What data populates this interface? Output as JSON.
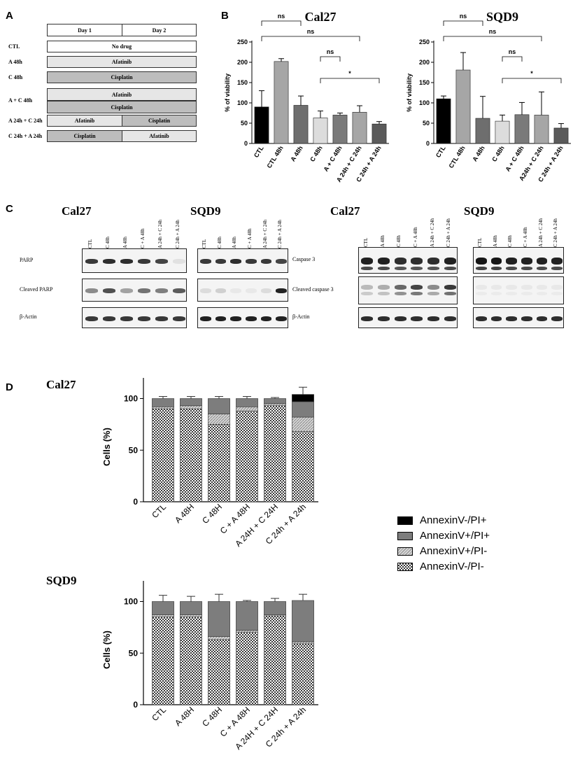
{
  "panels": {
    "a": "A",
    "b": "B",
    "c": "C",
    "d": "D"
  },
  "schedule": {
    "header": [
      "Day 1",
      "Day 2"
    ],
    "rows": [
      {
        "label": "CTL",
        "cells": [
          {
            "text": "No drug",
            "span": 2,
            "fill": "#ffffff"
          }
        ]
      },
      {
        "label": "A 48h",
        "cells": [
          {
            "text": "Afatinib",
            "span": 2,
            "fill": "#e6e6e6"
          }
        ]
      },
      {
        "label": "C 48h",
        "cells": [
          {
            "text": "Cisplatin",
            "span": 2,
            "fill": "#bdbdbd"
          }
        ]
      },
      {
        "label": "A + C 48h",
        "cells": [
          {
            "text": "Afatinib",
            "span": 2,
            "fill": "#e6e6e6"
          },
          {
            "text": "Cisplatin",
            "span": 2,
            "fill": "#bdbdbd"
          }
        ]
      },
      {
        "label": "A 24h + C 24h",
        "cells": [
          {
            "text": "Afatinib",
            "span": 1,
            "fill": "#e6e6e6"
          },
          {
            "text": "Cisplatin",
            "span": 1,
            "fill": "#bdbdbd"
          }
        ]
      },
      {
        "label": "C 24h + A 24h",
        "cells": [
          {
            "text": "Cisplatin",
            "span": 1,
            "fill": "#bdbdbd"
          },
          {
            "text": "Afatinib",
            "span": 1,
            "fill": "#e6e6e6"
          }
        ]
      }
    ]
  },
  "blots": {
    "left_titles": [
      "Cal27",
      "SQD9"
    ],
    "right_titles": [
      "Cal27",
      "SQD9"
    ],
    "left_lanes": [
      "CTL",
      "C 48h",
      "A 48h",
      "C + A 48h",
      "A 24h + C 24h",
      "C 24h + A 24h"
    ],
    "right_lanes": [
      "CTL",
      "A 48h",
      "C 48h",
      "C + A 48h",
      "A 24h + C 24h",
      "C 24h + A 24h"
    ],
    "left_rows": [
      "PARP",
      "Cleaved PARP",
      "β-Actin"
    ],
    "right_rows": [
      "Caspase 3",
      "Cleaved caspase 3",
      "β-Actin"
    ]
  },
  "legend": [
    {
      "label": "AnnexinV-/PI+",
      "fill": "solid-black"
    },
    {
      "label": "AnnexinV+/PI+",
      "fill": "solid-gray"
    },
    {
      "label": "AnnexinV+/PI-",
      "fill": "hatch"
    },
    {
      "label": "AnnexinV-/PI-",
      "fill": "checker"
    }
  ],
  "chart_data": [
    {
      "type": "bar",
      "title": "Cal27",
      "ylabel": "% of viability",
      "ylim": [
        0,
        250
      ],
      "yticks": [
        0,
        50,
        100,
        150,
        200,
        250
      ],
      "categories": [
        "CTL",
        "CTL 48h",
        "A 48h",
        "C 48h",
        "A + C 48h",
        "A 24h + C 24h",
        "C 24h + A 24h"
      ],
      "values": [
        90,
        202,
        94,
        63,
        70,
        77,
        48
      ],
      "errors": [
        40,
        7,
        23,
        17,
        5,
        16,
        6
      ],
      "colors": [
        "#000000",
        "#a6a6a6",
        "#6e6e6e",
        "#dcdcdc",
        "#7a7a7a",
        "#a6a6a6",
        "#5a5a5a"
      ],
      "annotations": [
        {
          "from": 0,
          "to": 2,
          "label": "ns",
          "level": 1
        },
        {
          "from": 0,
          "to": 5,
          "label": "ns",
          "level": 2
        },
        {
          "from": 3,
          "to": 4,
          "label": "ns",
          "level": 3
        },
        {
          "from": 3,
          "to": 6,
          "label": "*",
          "level": 4
        }
      ]
    },
    {
      "type": "bar",
      "title": "SQD9",
      "ylabel": "% of viability",
      "ylim": [
        0,
        250
      ],
      "yticks": [
        0,
        50,
        100,
        150,
        200,
        250
      ],
      "categories": [
        "CTL",
        "CTL 48h",
        "A 48h",
        "C 48h",
        "A + C 48h",
        "A24h + C 24h",
        "C 24h + A 24h"
      ],
      "values": [
        110,
        181,
        62,
        55,
        71,
        70,
        38
      ],
      "errors": [
        7,
        43,
        54,
        15,
        30,
        57,
        11
      ],
      "colors": [
        "#000000",
        "#a6a6a6",
        "#6e6e6e",
        "#dcdcdc",
        "#7a7a7a",
        "#a6a6a6",
        "#5a5a5a"
      ],
      "annotations": [
        {
          "from": 0,
          "to": 2,
          "label": "ns",
          "level": 1
        },
        {
          "from": 0,
          "to": 5,
          "label": "ns",
          "level": 2
        },
        {
          "from": 3,
          "to": 4,
          "label": "ns",
          "level": 3
        },
        {
          "from": 3,
          "to": 6,
          "label": "*",
          "level": 4
        }
      ]
    },
    {
      "type": "stacked-bar",
      "title": "Cal27",
      "ylabel": "Cells (%)",
      "ylim": [
        0,
        120
      ],
      "yticks": [
        0,
        50,
        100
      ],
      "categories": [
        "CTL",
        "A 48H",
        "C 48H",
        "C + A 48H",
        "A 24H + C 24H",
        "C 24h + A 24h"
      ],
      "series": [
        {
          "name": "AnnexinV-/PI-",
          "values": [
            90,
            90,
            75,
            88,
            93,
            68
          ],
          "errors": [
            2,
            2,
            3,
            2,
            1,
            2
          ]
        },
        {
          "name": "AnnexinV+/PI+ ",
          "values": [
            0,
            0,
            0,
            0,
            0,
            0
          ],
          "errors": [
            0,
            0,
            0,
            0,
            0,
            0
          ]
        },
        {
          "name": "AnnexinV+/PI-",
          "values": [
            2,
            3,
            10,
            4,
            2,
            14
          ],
          "errors": [
            1,
            1,
            2,
            1,
            1,
            2
          ]
        },
        {
          "name": "AnnexinV+/PI+",
          "values": [
            8,
            7,
            15,
            8,
            5,
            15
          ],
          "errors": [
            0,
            0,
            0,
            0,
            0,
            0
          ]
        },
        {
          "name": "AnnexinV-/PI+",
          "values": [
            0,
            0,
            0,
            0,
            0,
            7
          ],
          "errors": [
            2,
            2,
            2,
            2,
            1,
            7
          ]
        }
      ]
    },
    {
      "type": "stacked-bar",
      "title": "SQD9",
      "ylabel": "Cells (%)",
      "ylim": [
        0,
        120
      ],
      "yticks": [
        0,
        50,
        100
      ],
      "categories": [
        "CTL",
        "A 48H",
        "C 48H",
        "C + A 48H",
        "A 24H + C 24H",
        "C 24h + A 24h"
      ],
      "series": [
        {
          "name": "AnnexinV-/PI-",
          "values": [
            85,
            85,
            63,
            70,
            86,
            59
          ],
          "errors": [
            3,
            3,
            4,
            2,
            2,
            2
          ]
        },
        {
          "name": "AnnexinV+/PI-",
          "values": [
            2,
            2,
            3,
            2,
            1,
            2
          ],
          "errors": [
            0,
            0,
            0,
            0,
            0,
            0
          ]
        },
        {
          "name": "AnnexinV+/PI+",
          "values": [
            13,
            13,
            34,
            28,
            13,
            40
          ],
          "errors": [
            6,
            5,
            7,
            1,
            3,
            6
          ]
        }
      ]
    }
  ]
}
